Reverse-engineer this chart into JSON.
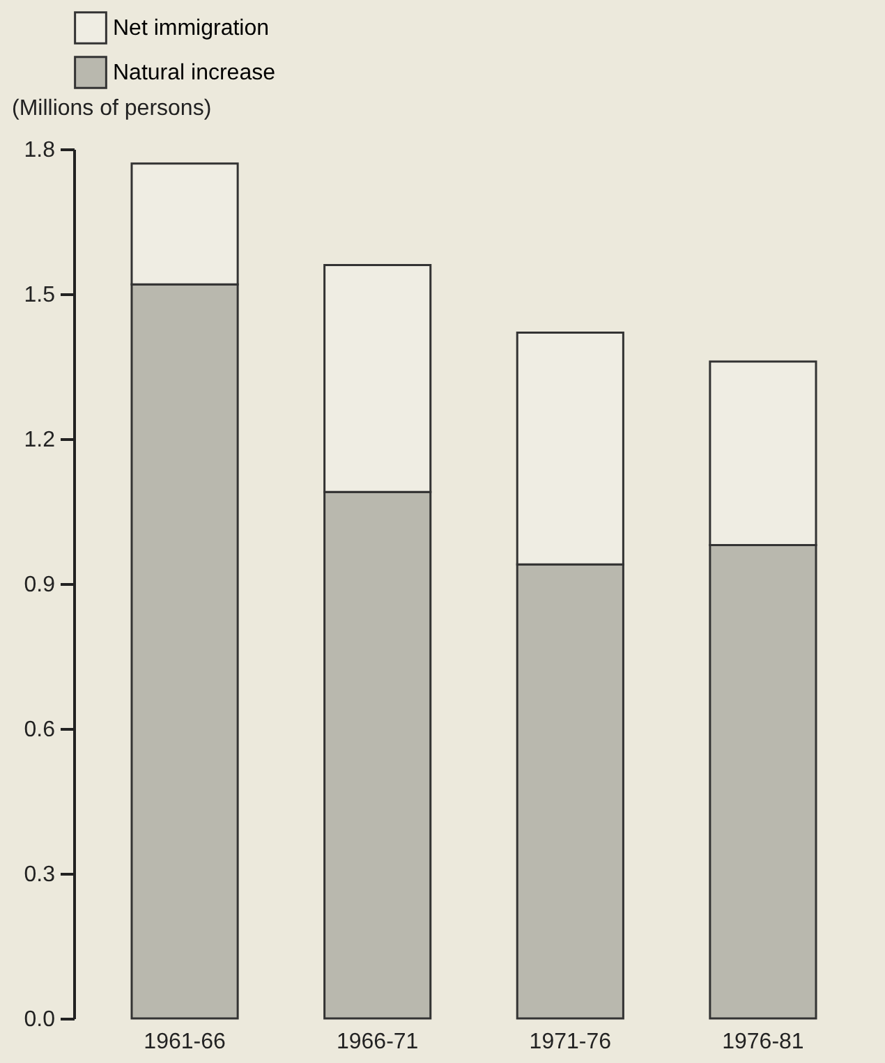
{
  "chart_data": {
    "type": "bar",
    "stacked": true,
    "ylabel": "(Millions of persons)",
    "categories": [
      "1961-66",
      "1966-71",
      "1971-76",
      "1976-81"
    ],
    "series": [
      {
        "name": "Natural increase",
        "color": "#b9b8ae",
        "values": [
          1.52,
          1.09,
          0.94,
          0.98
        ]
      },
      {
        "name": "Net immigration",
        "color": "#efede3",
        "values": [
          0.25,
          0.47,
          0.48,
          0.38
        ]
      }
    ],
    "ylim": [
      0,
      1.8
    ],
    "yticks": [
      {
        "value": 0,
        "label": "0.0"
      },
      0.3,
      0.6,
      0.9,
      1.2,
      1.5,
      1.8
    ],
    "legend": "top",
    "grid": false
  }
}
